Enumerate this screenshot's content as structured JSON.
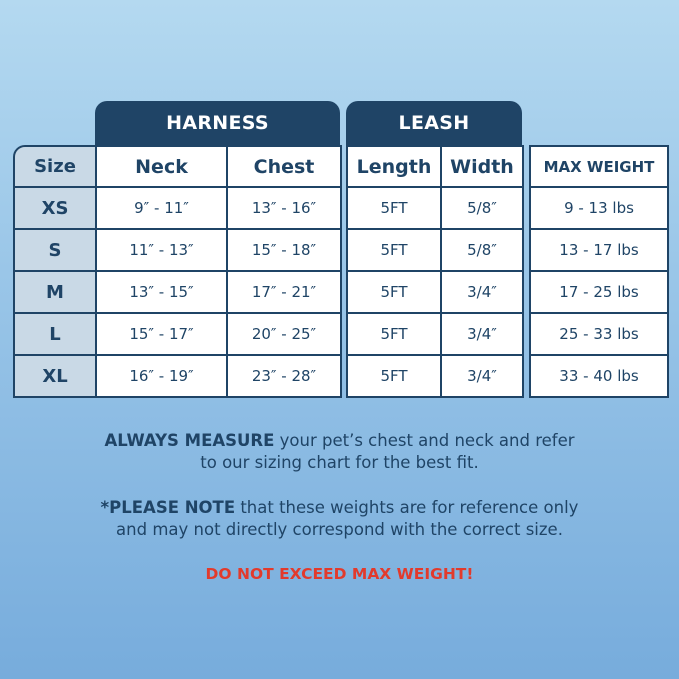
{
  "groups": {
    "harness": "HARNESS",
    "leash": "LEASH"
  },
  "headers": {
    "size": "Size",
    "neck": "Neck",
    "chest": "Chest",
    "length": "Length",
    "width": "Width",
    "max_weight": "MAX WEIGHT"
  },
  "rows": [
    {
      "size": "XS",
      "neck": "9″ - 11″",
      "chest": "13″ - 16″",
      "length": "5FT",
      "width": "5/8″",
      "max_weight": "9 - 13 lbs"
    },
    {
      "size": "S",
      "neck": "11″ - 13″",
      "chest": "15″ - 18″",
      "length": "5FT",
      "width": "5/8″",
      "max_weight": "13 - 17 lbs"
    },
    {
      "size": "M",
      "neck": "13″ - 15″",
      "chest": "17″ - 21″",
      "length": "5FT",
      "width": "3/4″",
      "max_weight": "17 - 25 lbs"
    },
    {
      "size": "L",
      "neck": "15″ - 17″",
      "chest": "20″ - 25″",
      "length": "5FT",
      "width": "3/4″",
      "max_weight": "25 - 33 lbs"
    },
    {
      "size": "XL",
      "neck": "16″ - 19″",
      "chest": "23″ - 28″",
      "length": "5FT",
      "width": "3/4″",
      "max_weight": "33 - 40 lbs"
    }
  ],
  "notes": {
    "measure_bold": "ALWAYS MEASURE",
    "measure_rest_1": " your pet’s chest and neck and refer",
    "measure_rest_2": "to our sizing chart for the best fit.",
    "please_bold": "*PLEASE NOTE",
    "please_rest_1": " that these weights are for reference only",
    "please_rest_2": "and may not directly correspond with the correct size.",
    "warning": "DO NOT EXCEED MAX WEIGHT!"
  },
  "colors": {
    "navy": "#1f4466",
    "size_column": "#c9d9e6",
    "warning": "#e23a2c"
  }
}
